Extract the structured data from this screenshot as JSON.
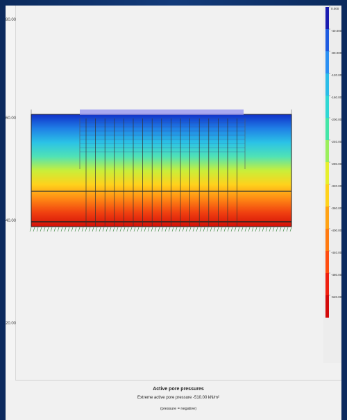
{
  "ruler": {
    "labels": [
      "80.00",
      "60.00",
      "40.00",
      "20.00"
    ]
  },
  "legend": {
    "values": [
      "0.000",
      "-40.000",
      "-80.000",
      "-120.000",
      "-160.000",
      "-200.000",
      "-240.000",
      "-280.000",
      "-320.000",
      "-360.000",
      "-400.000",
      "-440.000",
      "-480.000",
      "-520.000"
    ],
    "colors": [
      "#1a1cb0",
      "#1e5be0",
      "#2b8ff2",
      "#2bbde8",
      "#2fd8d4",
      "#44e6a8",
      "#9bef5c",
      "#e6ef2d",
      "#ffd21c",
      "#ffa214",
      "#ff7a10",
      "#ff4d10",
      "#ee2010",
      "#d30a0a"
    ]
  },
  "model": {
    "gradient_colors": [
      "#1030c8",
      "#1f7fe6",
      "#2bc2e6",
      "#4fe2b6",
      "#c8ef3a",
      "#ffd21c",
      "#ff8a14",
      "#f04010",
      "#d31008"
    ]
  },
  "caption": {
    "title": "Active pore pressures",
    "extreme": "Extreme active pore pressure -510.00 kN/m²",
    "note": "(pressure = negative)"
  }
}
